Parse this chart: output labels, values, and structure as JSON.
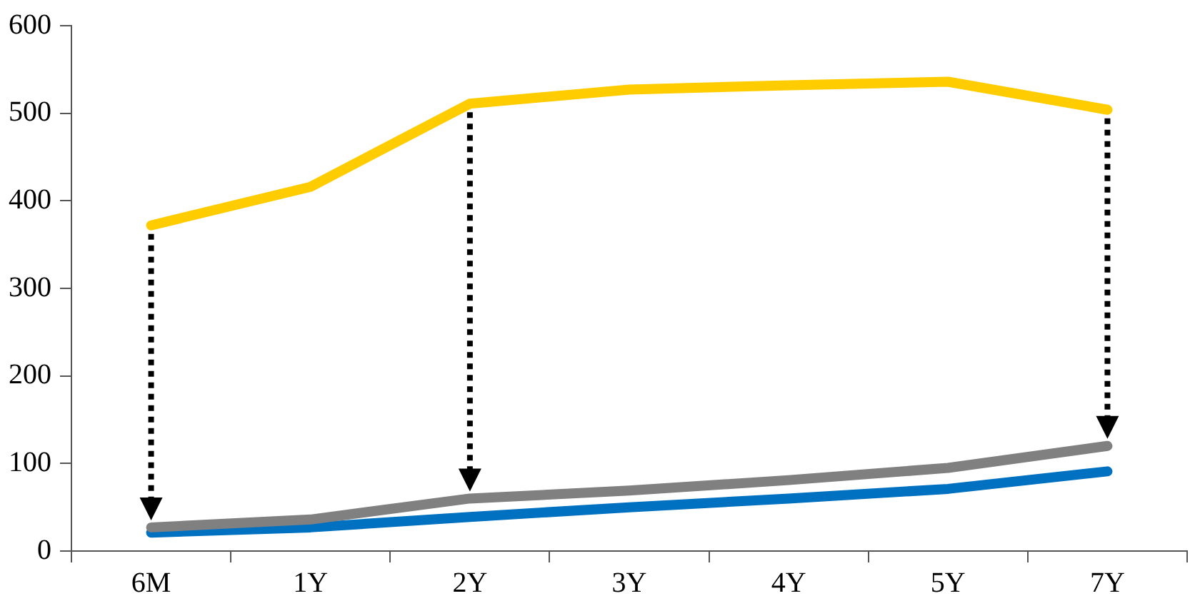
{
  "chart_data": {
    "type": "line",
    "categories": [
      "6M",
      "1Y",
      "2Y",
      "3Y",
      "4Y",
      "5Y",
      "7Y"
    ],
    "series": [
      {
        "color": "#ffcc00",
        "values": [
          372,
          416,
          511,
          527,
          532,
          536,
          504
        ]
      },
      {
        "color": "#808080",
        "values": [
          27,
          36,
          60,
          69,
          81,
          95,
          120
        ]
      },
      {
        "color": "#0070c0",
        "values": [
          21,
          27,
          39,
          50,
          60,
          71,
          91
        ]
      }
    ],
    "ylim": [
      0,
      600
    ],
    "yticks": [
      0,
      100,
      200,
      300,
      400,
      500,
      600
    ],
    "grid": false,
    "legend": false,
    "marker": "none",
    "line_style": "solid"
  }
}
